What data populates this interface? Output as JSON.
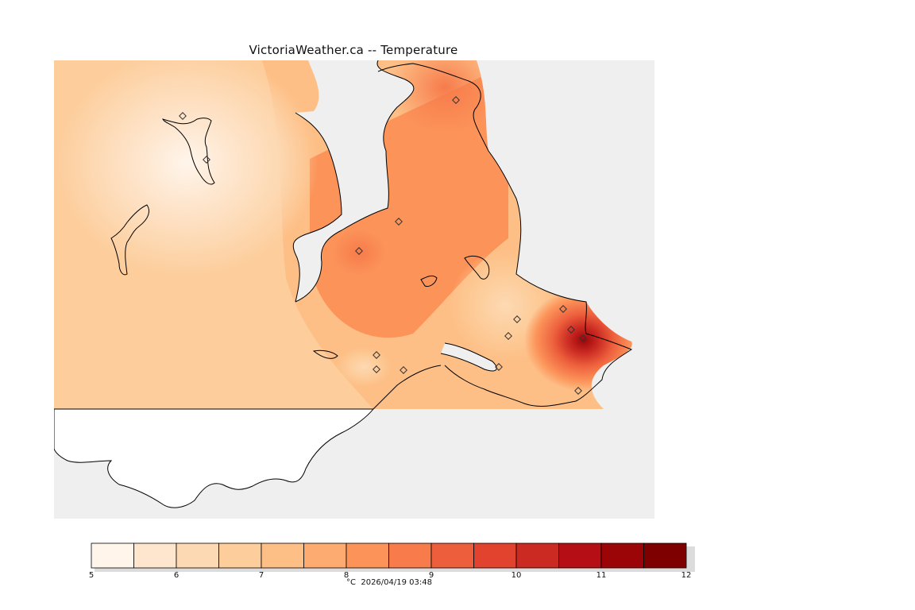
{
  "title": "VictoriaWeather.ca -- Temperature",
  "map": {
    "variable": "Temperature",
    "units": "°C",
    "field_range": [
      5,
      12
    ],
    "field_peaks": [
      {
        "name": "cool-centre-west",
        "value": 5.9
      },
      {
        "name": "warm-centre-east",
        "value": 11.4
      }
    ]
  },
  "legend": {
    "colors": [
      "#fff5eb",
      "#fee6ce",
      "#fdd9b3",
      "#fdcd9b",
      "#fdbf86",
      "#fdab70",
      "#fc945a",
      "#f77b4b",
      "#ed5f3c",
      "#e1432f",
      "#ca2a22",
      "#b50e14",
      "#9c0508",
      "#7f0000"
    ],
    "tick_labels": [
      "5",
      "6",
      "7",
      "8",
      "9",
      "10",
      "11",
      "12"
    ],
    "units": "°C",
    "timestamp": "2026/04/19 03:48"
  },
  "colors": {
    "ocean": "#efefef",
    "land_outside": "#ffffff",
    "coast": "#000000"
  }
}
